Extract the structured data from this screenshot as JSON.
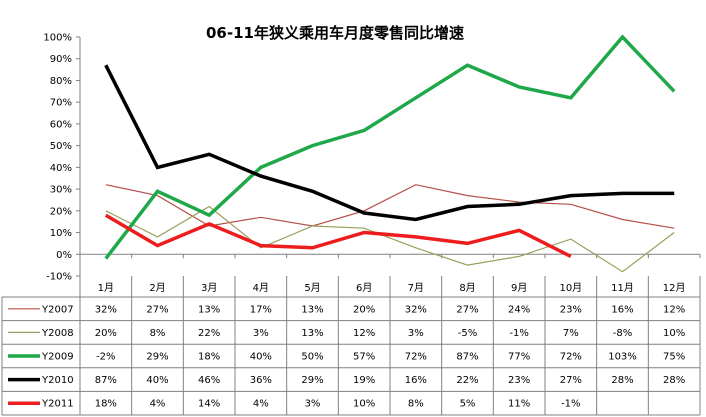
{
  "chart_data": {
    "type": "line",
    "title": "06-11年狭义乘用车月度零售同比增速",
    "categories": [
      "1月",
      "2月",
      "3月",
      "4月",
      "5月",
      "6月",
      "7月",
      "8月",
      "9月",
      "10月",
      "11月",
      "12月"
    ],
    "y_ticks": [
      "-10%",
      "0%",
      "10%",
      "20%",
      "30%",
      "40%",
      "50%",
      "60%",
      "70%",
      "80%",
      "90%",
      "100%"
    ],
    "ylim": [
      -10,
      100
    ],
    "grid": false,
    "legend": "data-table-below",
    "series": [
      {
        "name": "Y2007",
        "color": "#b5504a",
        "width": "thin",
        "values": [
          32,
          27,
          13,
          17,
          13,
          20,
          32,
          27,
          24,
          23,
          16,
          12
        ],
        "labels": [
          "32%",
          "27%",
          "13%",
          "17%",
          "13%",
          "20%",
          "32%",
          "27%",
          "24%",
          "23%",
          "16%",
          "12%"
        ]
      },
      {
        "name": "Y2008",
        "color": "#9aa05a",
        "width": "thin",
        "values": [
          20,
          8,
          22,
          3,
          13,
          12,
          3,
          -5,
          -1,
          7,
          -8,
          10
        ],
        "labels": [
          "20%",
          "8%",
          "22%",
          "3%",
          "13%",
          "12%",
          "3%",
          "-5%",
          "-1%",
          "7%",
          "-8%",
          "10%"
        ]
      },
      {
        "name": "Y2009",
        "color": "#1fa84a",
        "width": "thick",
        "values": [
          -2,
          29,
          18,
          40,
          50,
          57,
          72,
          87,
          77,
          72,
          103,
          75
        ],
        "labels": [
          "-2%",
          "29%",
          "18%",
          "40%",
          "50%",
          "57%",
          "72%",
          "87%",
          "77%",
          "72%",
          "103%",
          "75%"
        ]
      },
      {
        "name": "Y2010",
        "color": "#000000",
        "width": "thick",
        "values": [
          87,
          40,
          46,
          36,
          29,
          19,
          16,
          22,
          23,
          27,
          28,
          28
        ],
        "labels": [
          "87%",
          "40%",
          "46%",
          "36%",
          "29%",
          "19%",
          "16%",
          "22%",
          "23%",
          "27%",
          "28%",
          "28%"
        ]
      },
      {
        "name": "Y2011",
        "color": "#ee1c1c",
        "width": "thick",
        "values": [
          18,
          4,
          14,
          4,
          3,
          10,
          8,
          5,
          11,
          -1,
          null,
          null
        ],
        "labels": [
          "18%",
          "4%",
          "14%",
          "4%",
          "3%",
          "10%",
          "8%",
          "5%",
          "11%",
          "-1%",
          "",
          ""
        ]
      }
    ]
  }
}
